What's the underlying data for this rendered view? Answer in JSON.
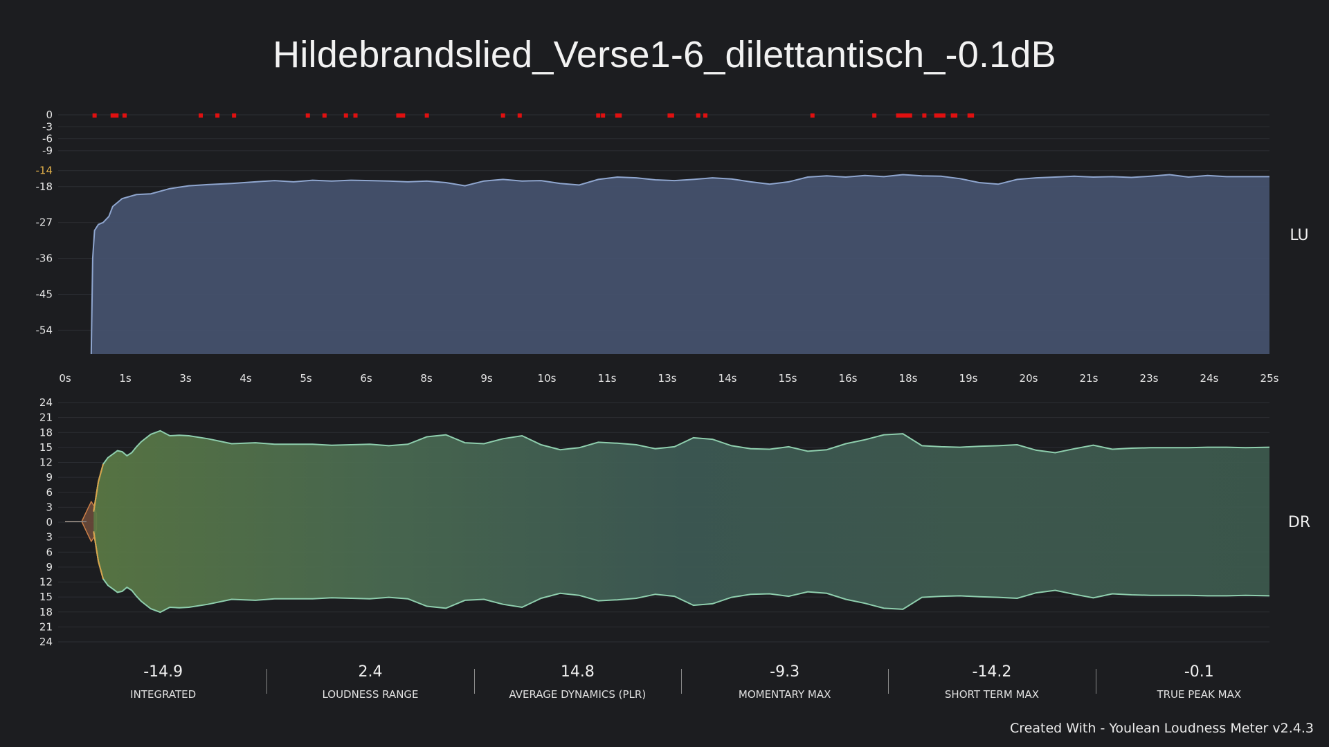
{
  "title": "Hildebrandslied_Verse1-6_dilettantisch_-0.1dB",
  "credit": "Created With - Youlean Loudness Meter v2.4.3",
  "colors": {
    "background": "#1c1d20",
    "loudness_fill": "#45536f",
    "loudness_line": "#8fa6cf",
    "dr_fill": "#3d5a4e",
    "dr_line": "#8fcfae",
    "dr_attack": "#e08a4c",
    "peak_marker": "#e01010",
    "highlight_tick": "#e2b04a"
  },
  "chart_data": [
    {
      "type": "area",
      "name": "loudness",
      "side_label": "LU",
      "y_ticks": [
        0,
        -3,
        -6,
        -9,
        -14,
        -18,
        -27,
        -36,
        -45,
        -54
      ],
      "y_ticks_highlight": [
        -14
      ],
      "ylim": [
        -60,
        0
      ],
      "x_tick_labels": [
        "0s",
        "1s",
        "3s",
        "4s",
        "5s",
        "6s",
        "8s",
        "9s",
        "10s",
        "11s",
        "13s",
        "14s",
        "15s",
        "16s",
        "18s",
        "19s",
        "20s",
        "21s",
        "23s",
        "24s",
        "25s"
      ],
      "xlim": [
        0,
        25.3
      ],
      "series": {
        "x": [
          0.55,
          0.58,
          0.62,
          0.7,
          0.8,
          0.92,
          1.0,
          1.2,
          1.5,
          1.8,
          2.2,
          2.6,
          3.0,
          3.5,
          4.0,
          4.4,
          4.8,
          5.2,
          5.6,
          6.0,
          6.4,
          6.8,
          7.2,
          7.6,
          8.0,
          8.4,
          8.8,
          9.2,
          9.6,
          10.0,
          10.4,
          10.8,
          11.2,
          11.6,
          12.0,
          12.4,
          12.8,
          13.2,
          13.6,
          14.0,
          14.4,
          14.8,
          15.2,
          15.6,
          16.0,
          16.4,
          16.8,
          17.2,
          17.6,
          18.0,
          18.4,
          18.8,
          19.2,
          19.6,
          20.0,
          20.4,
          20.8,
          21.2,
          21.6,
          22.0,
          22.4,
          22.8,
          23.2,
          23.6,
          24.0,
          24.4,
          24.8,
          25.3
        ],
        "y": [
          -60,
          -36,
          -29,
          -27.5,
          -27,
          -25.5,
          -23,
          -21,
          -20,
          -19.8,
          -18.5,
          -17.8,
          -17.5,
          -17.2,
          -16.8,
          -16.5,
          -16.8,
          -16.4,
          -16.6,
          -16.4,
          -16.5,
          -16.6,
          -16.8,
          -16.6,
          -17.0,
          -17.8,
          -16.6,
          -16.2,
          -16.6,
          -16.5,
          -17.2,
          -17.6,
          -16.2,
          -15.6,
          -15.8,
          -16.3,
          -16.5,
          -16.2,
          -15.8,
          -16.1,
          -16.8,
          -17.4,
          -16.8,
          -15.6,
          -15.3,
          -15.6,
          -15.2,
          -15.5,
          -15.0,
          -15.3,
          -15.4,
          -16.0,
          -17.0,
          -17.4,
          -16.2,
          -15.8,
          -15.6,
          -15.4,
          -15.6,
          -15.5,
          -15.7,
          -15.4,
          -15.0,
          -15.6,
          -15.2,
          -15.5,
          -15.5,
          -15.5
        ]
      },
      "true_peak_markers_s": [
        0.62,
        1.0,
        1.08,
        1.25,
        2.85,
        3.2,
        3.55,
        5.1,
        5.45,
        5.9,
        6.1,
        7.0,
        7.05,
        7.1,
        7.6,
        9.2,
        9.55,
        11.2,
        11.3,
        11.6,
        11.65,
        12.7,
        12.75,
        13.3,
        13.45,
        15.7,
        17.0,
        17.5,
        17.55,
        17.6,
        17.65,
        17.7,
        17.75,
        18.05,
        18.3,
        18.35,
        18.4,
        18.45,
        18.65,
        18.7,
        19.0,
        19.05
      ]
    },
    {
      "type": "area",
      "name": "dynamic_range",
      "side_label": "DR",
      "y_tick_labels": [
        "24",
        "21",
        "18",
        "15",
        "12",
        "9",
        "6",
        "3",
        "0",
        "3",
        "6",
        "9",
        "12",
        "15",
        "18",
        "21",
        "24"
      ],
      "ylim": [
        -24,
        24
      ],
      "xlim": [
        0,
        25.3
      ],
      "attack_phase": {
        "x": [
          0.0,
          0.35,
          0.45,
          0.55,
          0.62,
          0.66
        ],
        "y": [
          0,
          0,
          2.0,
          4.0,
          3.0,
          1.5
        ]
      },
      "series": {
        "x": [
          0.6,
          0.7,
          0.8,
          0.9,
          1.0,
          1.1,
          1.2,
          1.3,
          1.4,
          1.5,
          1.6,
          1.8,
          2.0,
          2.2,
          2.4,
          2.6,
          3.0,
          3.5,
          4.0,
          4.4,
          4.8,
          5.2,
          5.6,
          6.0,
          6.4,
          6.8,
          7.2,
          7.6,
          8.0,
          8.4,
          8.8,
          9.2,
          9.6,
          10.0,
          10.4,
          10.8,
          11.2,
          11.6,
          12.0,
          12.4,
          12.8,
          13.2,
          13.6,
          14.0,
          14.4,
          14.8,
          15.2,
          15.6,
          16.0,
          16.4,
          16.8,
          17.2,
          17.6,
          18.0,
          18.4,
          18.8,
          19.2,
          19.6,
          20.0,
          20.4,
          20.8,
          21.2,
          21.6,
          22.0,
          22.4,
          22.8,
          23.2,
          23.6,
          24.0,
          24.4,
          24.8,
          25.3
        ],
        "y": [
          2,
          8,
          11.5,
          12.8,
          13.5,
          14.2,
          14,
          13.2,
          13.8,
          15,
          16,
          17.5,
          18.2,
          17.2,
          17.3,
          17.2,
          16.6,
          15.6,
          15.8,
          15.5,
          15.5,
          15.5,
          15.3,
          15.4,
          15.5,
          15.2,
          15.5,
          17.0,
          17.4,
          15.8,
          15.6,
          16.6,
          17.2,
          15.4,
          14.4,
          14.8,
          15.9,
          15.7,
          15.4,
          14.6,
          15.0,
          16.8,
          16.5,
          15.2,
          14.6,
          14.5,
          15.0,
          14.1,
          14.4,
          15.6,
          16.4,
          17.4,
          17.6,
          15.2,
          15.0,
          14.9,
          15.1,
          15.2,
          15.4,
          14.3,
          13.8,
          14.6,
          15.3,
          14.5,
          14.7,
          14.8,
          14.8,
          14.8,
          14.9,
          14.9,
          14.8,
          14.9
        ]
      }
    }
  ],
  "stats": [
    {
      "value": "-14.9",
      "label": "INTEGRATED"
    },
    {
      "value": "2.4",
      "label": "LOUDNESS RANGE"
    },
    {
      "value": "14.8",
      "label": "AVERAGE DYNAMICS (PLR)"
    },
    {
      "value": "-9.3",
      "label": "MOMENTARY MAX"
    },
    {
      "value": "-14.2",
      "label": "SHORT TERM MAX"
    },
    {
      "value": "-0.1",
      "label": "TRUE PEAK MAX"
    }
  ]
}
